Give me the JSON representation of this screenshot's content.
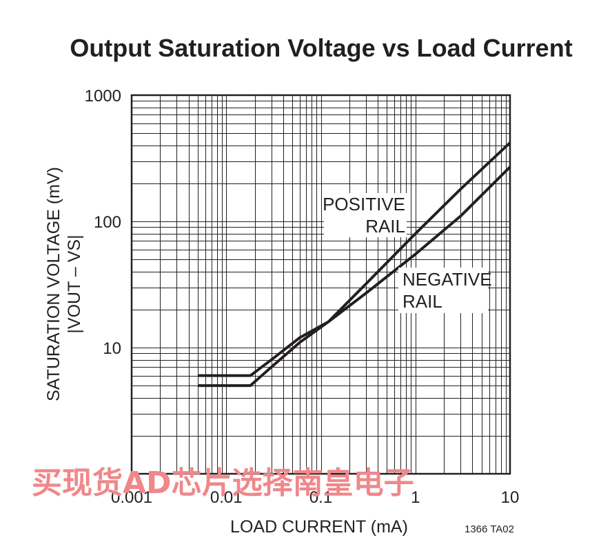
{
  "chart_data": {
    "type": "line",
    "title": "Output Saturation Voltage vs Load Current",
    "xlabel": "LOAD CURRENT (mA)",
    "ylabel": "SATURATION VOLTAGE (mV)",
    "ylabel_sub": "|VOUT – VS|",
    "x_scale": "log",
    "y_scale": "log",
    "xlim": [
      0.001,
      10
    ],
    "ylim": [
      1,
      1000
    ],
    "grid": true,
    "x_ticks": [
      {
        "value": 0.001,
        "label": "0.001"
      },
      {
        "value": 0.01,
        "label": "0.01"
      },
      {
        "value": 0.1,
        "label": "0.1"
      },
      {
        "value": 1,
        "label": "1"
      },
      {
        "value": 10,
        "label": "10"
      }
    ],
    "y_ticks": [
      {
        "value": 10,
        "label": "10"
      },
      {
        "value": 100,
        "label": "100"
      },
      {
        "value": 1000,
        "label": "1000"
      }
    ],
    "series": [
      {
        "name": "POSITIVE RAIL",
        "x": [
          0.005,
          0.018,
          0.03,
          0.06,
          0.12,
          0.3,
          1,
          3,
          10
        ],
        "y": [
          5,
          5,
          7,
          11,
          16,
          32,
          80,
          180,
          420
        ]
      },
      {
        "name": "NEGATIVE RAIL",
        "x": [
          0.005,
          0.018,
          0.03,
          0.06,
          0.12,
          0.3,
          1,
          3,
          10
        ],
        "y": [
          6,
          6,
          8,
          12,
          16,
          27,
          55,
          110,
          270
        ]
      }
    ],
    "annotations": [
      {
        "lines": [
          "POSITIVE",
          "RAIL"
        ]
      },
      {
        "lines": [
          "NEGATIVE",
          "RAIL"
        ]
      }
    ],
    "figure_code": "1366 TA02"
  },
  "watermark": "买现货AD芯片选择南皇电子",
  "colors": {
    "ink": "#231f20",
    "watermark": "#f0878a"
  }
}
